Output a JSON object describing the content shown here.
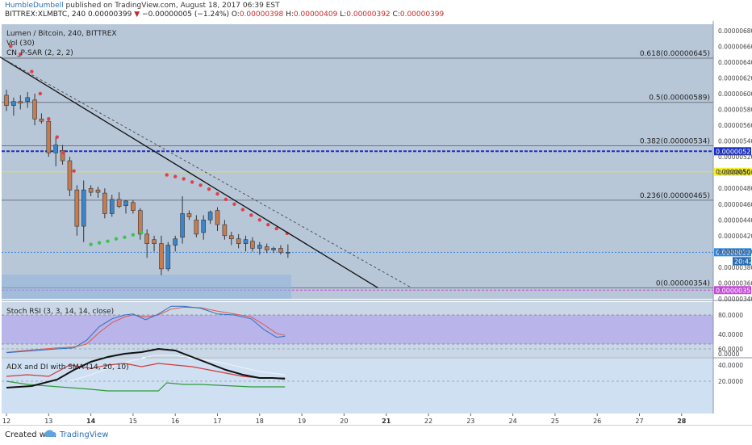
{
  "header": {
    "author": "HumbleDumbell",
    "published_text": "published on TradingView.com, August 18, 2017 06:39 EST",
    "symbol_line": "BITTREX:XLMBTC, 240",
    "last": "0.00000399",
    "change": "−0.00000005 (−1.24%)",
    "o_label": "O:",
    "o_value": "0.00000398",
    "h_label": "H:",
    "h_value": "0.00000409",
    "l_label": "L:",
    "l_value": "0.00000392",
    "c_label": "C:",
    "c_value": "0.00000399"
  },
  "legend": {
    "title": "Lumen / Bitcoin, 240, BITTREX",
    "vol": "Vol (30)",
    "psar": "CN_P-SAR (2, 2, 2)",
    "stoch": "Stoch RSI (3, 3, 14, 14, close)",
    "adx": "ADX and DI with SMA (14, 20, 10)"
  },
  "footer": {
    "created_with": "Created with",
    "brand": "TradingView"
  },
  "colors": {
    "main_bg": "#b8c7d8",
    "stoch_band": "#b9b4ea",
    "stoch_bg": "#c9d7e6",
    "adx_bg": "#cfe0f2",
    "up": "#3e85c8",
    "down": "#c77c4f",
    "psar_red": "#e0404a",
    "psar_green": "#3fc24f",
    "fib_line": "#6c7480",
    "level_blue": "#1b2fc2",
    "level_yellow": "#e6e03a",
    "last_price": "#2e86de",
    "level_purple": "#c24bd6"
  },
  "chart_data": {
    "type": "candlestick",
    "symbol": "XLMBTC",
    "x": [
      "12",
      "13",
      "14",
      "15",
      "16",
      "17",
      "18",
      "19",
      "20",
      "21",
      "22",
      "23",
      "24",
      "25",
      "26",
      "27",
      "28"
    ],
    "price_axis": {
      "ticks": [
        "0.00000680",
        "0.00000660",
        "0.00000640",
        "0.00000620",
        "0.00000600",
        "0.00000580",
        "0.00000560",
        "0.00000540",
        "0.00000520",
        "0.00000500",
        "0.00000480",
        "0.00000460",
        "0.00000440",
        "0.00000420",
        "0.00000400",
        "0.00000380",
        "0.00000360",
        "0.00000340"
      ],
      "ylim": [
        3.4e-06,
        6.88e-06
      ]
    },
    "candles": [
      {
        "t": 12.0,
        "o": 598,
        "h": 605,
        "l": 578,
        "c": 585
      },
      {
        "t": 12.17,
        "o": 585,
        "h": 595,
        "l": 572,
        "c": 590
      },
      {
        "t": 12.33,
        "o": 590,
        "h": 598,
        "l": 580,
        "c": 588
      },
      {
        "t": 12.5,
        "o": 590,
        "h": 602,
        "l": 582,
        "c": 595
      },
      {
        "t": 12.67,
        "o": 592,
        "h": 600,
        "l": 560,
        "c": 568
      },
      {
        "t": 12.83,
        "o": 568,
        "h": 575,
        "l": 562,
        "c": 565
      },
      {
        "t": 13.0,
        "o": 565,
        "h": 568,
        "l": 520,
        "c": 525
      },
      {
        "t": 13.17,
        "o": 525,
        "h": 545,
        "l": 508,
        "c": 535
      },
      {
        "t": 13.33,
        "o": 528,
        "h": 535,
        "l": 510,
        "c": 515
      },
      {
        "t": 13.5,
        "o": 515,
        "h": 520,
        "l": 470,
        "c": 478
      },
      {
        "t": 13.67,
        "o": 478,
        "h": 484,
        "l": 420,
        "c": 432
      },
      {
        "t": 13.83,
        "o": 432,
        "h": 490,
        "l": 412,
        "c": 478
      },
      {
        "t": 14.0,
        "o": 480,
        "h": 484,
        "l": 470,
        "c": 475
      },
      {
        "t": 14.17,
        "o": 478,
        "h": 482,
        "l": 468,
        "c": 475
      },
      {
        "t": 14.33,
        "o": 474,
        "h": 480,
        "l": 442,
        "c": 448
      },
      {
        "t": 14.5,
        "o": 448,
        "h": 472,
        "l": 444,
        "c": 466
      },
      {
        "t": 14.67,
        "o": 466,
        "h": 475,
        "l": 455,
        "c": 457
      },
      {
        "t": 14.83,
        "o": 458,
        "h": 465,
        "l": 448,
        "c": 464
      },
      {
        "t": 15.0,
        "o": 462,
        "h": 465,
        "l": 448,
        "c": 452
      },
      {
        "t": 15.17,
        "o": 452,
        "h": 455,
        "l": 415,
        "c": 422
      },
      {
        "t": 15.33,
        "o": 422,
        "h": 428,
        "l": 392,
        "c": 410
      },
      {
        "t": 15.5,
        "o": 415,
        "h": 420,
        "l": 400,
        "c": 410
      },
      {
        "t": 15.67,
        "o": 410,
        "h": 420,
        "l": 370,
        "c": 378
      },
      {
        "t": 15.83,
        "o": 378,
        "h": 412,
        "l": 375,
        "c": 408
      },
      {
        "t": 16.0,
        "o": 408,
        "h": 420,
        "l": 400,
        "c": 416
      },
      {
        "t": 16.17,
        "o": 418,
        "h": 470,
        "l": 410,
        "c": 448
      },
      {
        "t": 16.33,
        "o": 448,
        "h": 452,
        "l": 440,
        "c": 444
      },
      {
        "t": 16.5,
        "o": 440,
        "h": 446,
        "l": 418,
        "c": 422
      },
      {
        "t": 16.67,
        "o": 424,
        "h": 446,
        "l": 415,
        "c": 440
      },
      {
        "t": 16.83,
        "o": 440,
        "h": 452,
        "l": 435,
        "c": 450
      },
      {
        "t": 17.0,
        "o": 452,
        "h": 456,
        "l": 426,
        "c": 434
      },
      {
        "t": 17.17,
        "o": 434,
        "h": 440,
        "l": 415,
        "c": 420
      },
      {
        "t": 17.33,
        "o": 420,
        "h": 425,
        "l": 408,
        "c": 416
      },
      {
        "t": 17.5,
        "o": 416,
        "h": 422,
        "l": 404,
        "c": 410
      },
      {
        "t": 17.67,
        "o": 410,
        "h": 420,
        "l": 400,
        "c": 415
      },
      {
        "t": 17.83,
        "o": 413,
        "h": 418,
        "l": 400,
        "c": 404
      },
      {
        "t": 18.0,
        "o": 404,
        "h": 412,
        "l": 396,
        "c": 408
      },
      {
        "t": 18.17,
        "o": 406,
        "h": 410,
        "l": 398,
        "c": 402
      },
      {
        "t": 18.33,
        "o": 402,
        "h": 406,
        "l": 398,
        "c": 404
      },
      {
        "t": 18.5,
        "o": 404,
        "h": 408,
        "l": 396,
        "c": 399
      },
      {
        "t": 18.67,
        "o": 398,
        "h": 409,
        "l": 392,
        "c": 399
      }
    ],
    "psar_red": [
      [
        12.1,
        660
      ],
      [
        12.33,
        650
      ],
      [
        12.6,
        628
      ],
      [
        12.8,
        600
      ],
      [
        13.0,
        568
      ],
      [
        13.2,
        545
      ],
      [
        13.35,
        525
      ],
      [
        13.6,
        502
      ],
      [
        15.8,
        497
      ],
      [
        16.0,
        495
      ],
      [
        16.2,
        492
      ],
      [
        16.4,
        488
      ],
      [
        16.6,
        484
      ],
      [
        16.8,
        479
      ],
      [
        17.0,
        473
      ],
      [
        17.2,
        466
      ],
      [
        17.4,
        460
      ],
      [
        17.6,
        453
      ],
      [
        17.8,
        446
      ],
      [
        18.0,
        440
      ],
      [
        18.2,
        434
      ],
      [
        18.4,
        429
      ],
      [
        18.65,
        423
      ]
    ],
    "psar_green": [
      [
        14.0,
        409
      ],
      [
        14.2,
        411
      ],
      [
        14.4,
        413
      ],
      [
        14.6,
        416
      ],
      [
        14.8,
        418
      ],
      [
        15.0,
        421
      ],
      [
        15.2,
        424
      ]
    ],
    "fib_levels": [
      {
        "label": "0.618(0.00000645)",
        "v": 645
      },
      {
        "label": "0.5(0.00000589)",
        "v": 589
      },
      {
        "label": "0.382(0.00000534)",
        "v": 534
      },
      {
        "label": "0.236(0.00000465)",
        "v": 465
      },
      {
        "label": "0(0.00000354)",
        "v": 354
      }
    ],
    "horizontal_levels": [
      {
        "label": "0.00000527",
        "v": 527,
        "kind": "blue"
      },
      {
        "label": "0.00000501",
        "v": 501,
        "kind": "yellow"
      },
      {
        "label": "0.00000399",
        "v": 399,
        "kind": "last"
      },
      {
        "label": "0.00000351",
        "v": 351,
        "kind": "purple"
      }
    ],
    "last_time_label": "20:42",
    "trendlines": [
      {
        "style": "solid",
        "from": [
          11.8,
          648
        ],
        "to": [
          20.8,
          354
        ]
      },
      {
        "style": "dashed",
        "from": [
          11.8,
          648
        ],
        "to": [
          21.6,
          354
        ]
      }
    ],
    "stoch_rsi": {
      "ticks": [
        "80.0000",
        "40.0000",
        "0.0000"
      ],
      "k": [
        [
          12,
          2
        ],
        [
          12.6,
          6
        ],
        [
          13.2,
          10
        ],
        [
          13.6,
          12
        ],
        [
          13.9,
          28
        ],
        [
          14.2,
          56
        ],
        [
          14.5,
          72
        ],
        [
          14.8,
          80
        ],
        [
          15.0,
          82
        ],
        [
          15.3,
          70
        ],
        [
          15.6,
          82
        ],
        [
          15.9,
          98
        ],
        [
          16.2,
          98
        ],
        [
          16.6,
          94
        ],
        [
          17.0,
          82
        ],
        [
          17.4,
          80
        ],
        [
          17.8,
          72
        ],
        [
          18.1,
          50
        ],
        [
          18.4,
          34
        ],
        [
          18.6,
          36
        ]
      ],
      "d": [
        [
          12,
          3
        ],
        [
          12.6,
          8
        ],
        [
          13.2,
          12
        ],
        [
          13.6,
          14
        ],
        [
          13.9,
          20
        ],
        [
          14.2,
          44
        ],
        [
          14.5,
          64
        ],
        [
          14.8,
          76
        ],
        [
          15.0,
          80
        ],
        [
          15.3,
          76
        ],
        [
          15.6,
          80
        ],
        [
          15.9,
          92
        ],
        [
          16.2,
          96
        ],
        [
          16.6,
          95
        ],
        [
          17.0,
          88
        ],
        [
          17.4,
          82
        ],
        [
          17.8,
          76
        ],
        [
          18.1,
          60
        ],
        [
          18.4,
          42
        ],
        [
          18.6,
          38
        ]
      ]
    },
    "adx": {
      "ticks": [
        "60.0000",
        "40.0000",
        "20.0000"
      ],
      "adx": [
        [
          12,
          12
        ],
        [
          12.6,
          14
        ],
        [
          13.2,
          22
        ],
        [
          13.6,
          34
        ],
        [
          14.0,
          44
        ],
        [
          14.4,
          50
        ],
        [
          14.8,
          54
        ],
        [
          15.2,
          56
        ],
        [
          15.6,
          60
        ],
        [
          16.0,
          58
        ],
        [
          16.4,
          50
        ],
        [
          16.8,
          42
        ],
        [
          17.2,
          34
        ],
        [
          17.6,
          28
        ],
        [
          18.0,
          24
        ],
        [
          18.3,
          24
        ],
        [
          18.6,
          23
        ]
      ],
      "di_plus": [
        [
          12,
          20
        ],
        [
          12.5,
          16
        ],
        [
          13.0,
          14
        ],
        [
          13.5,
          12
        ],
        [
          14.0,
          10
        ],
        [
          14.4,
          8
        ],
        [
          14.8,
          8
        ],
        [
          15.2,
          8
        ],
        [
          15.6,
          8
        ],
        [
          15.8,
          18
        ],
        [
          16.2,
          16
        ],
        [
          16.6,
          16
        ],
        [
          17.0,
          15
        ],
        [
          17.4,
          14
        ],
        [
          17.8,
          13
        ],
        [
          18.2,
          13
        ],
        [
          18.6,
          13
        ]
      ],
      "di_minus": [
        [
          12,
          26
        ],
        [
          12.5,
          28
        ],
        [
          13.0,
          26
        ],
        [
          13.5,
          40
        ],
        [
          14.0,
          36
        ],
        [
          14.4,
          40
        ],
        [
          14.8,
          42
        ],
        [
          15.2,
          38
        ],
        [
          15.6,
          42
        ],
        [
          16.0,
          40
        ],
        [
          16.4,
          38
        ],
        [
          16.8,
          34
        ],
        [
          17.2,
          30
        ],
        [
          17.6,
          26
        ],
        [
          18.0,
          24
        ],
        [
          18.3,
          24
        ],
        [
          18.6,
          24
        ]
      ],
      "sma": [
        [
          13.5,
          20
        ],
        [
          14.0,
          28
        ],
        [
          14.5,
          38
        ],
        [
          15.0,
          46
        ],
        [
          15.5,
          52
        ],
        [
          16.0,
          52
        ],
        [
          16.5,
          48
        ],
        [
          17.0,
          44
        ],
        [
          17.5,
          38
        ],
        [
          18.0,
          32
        ],
        [
          18.6,
          28
        ]
      ]
    }
  }
}
